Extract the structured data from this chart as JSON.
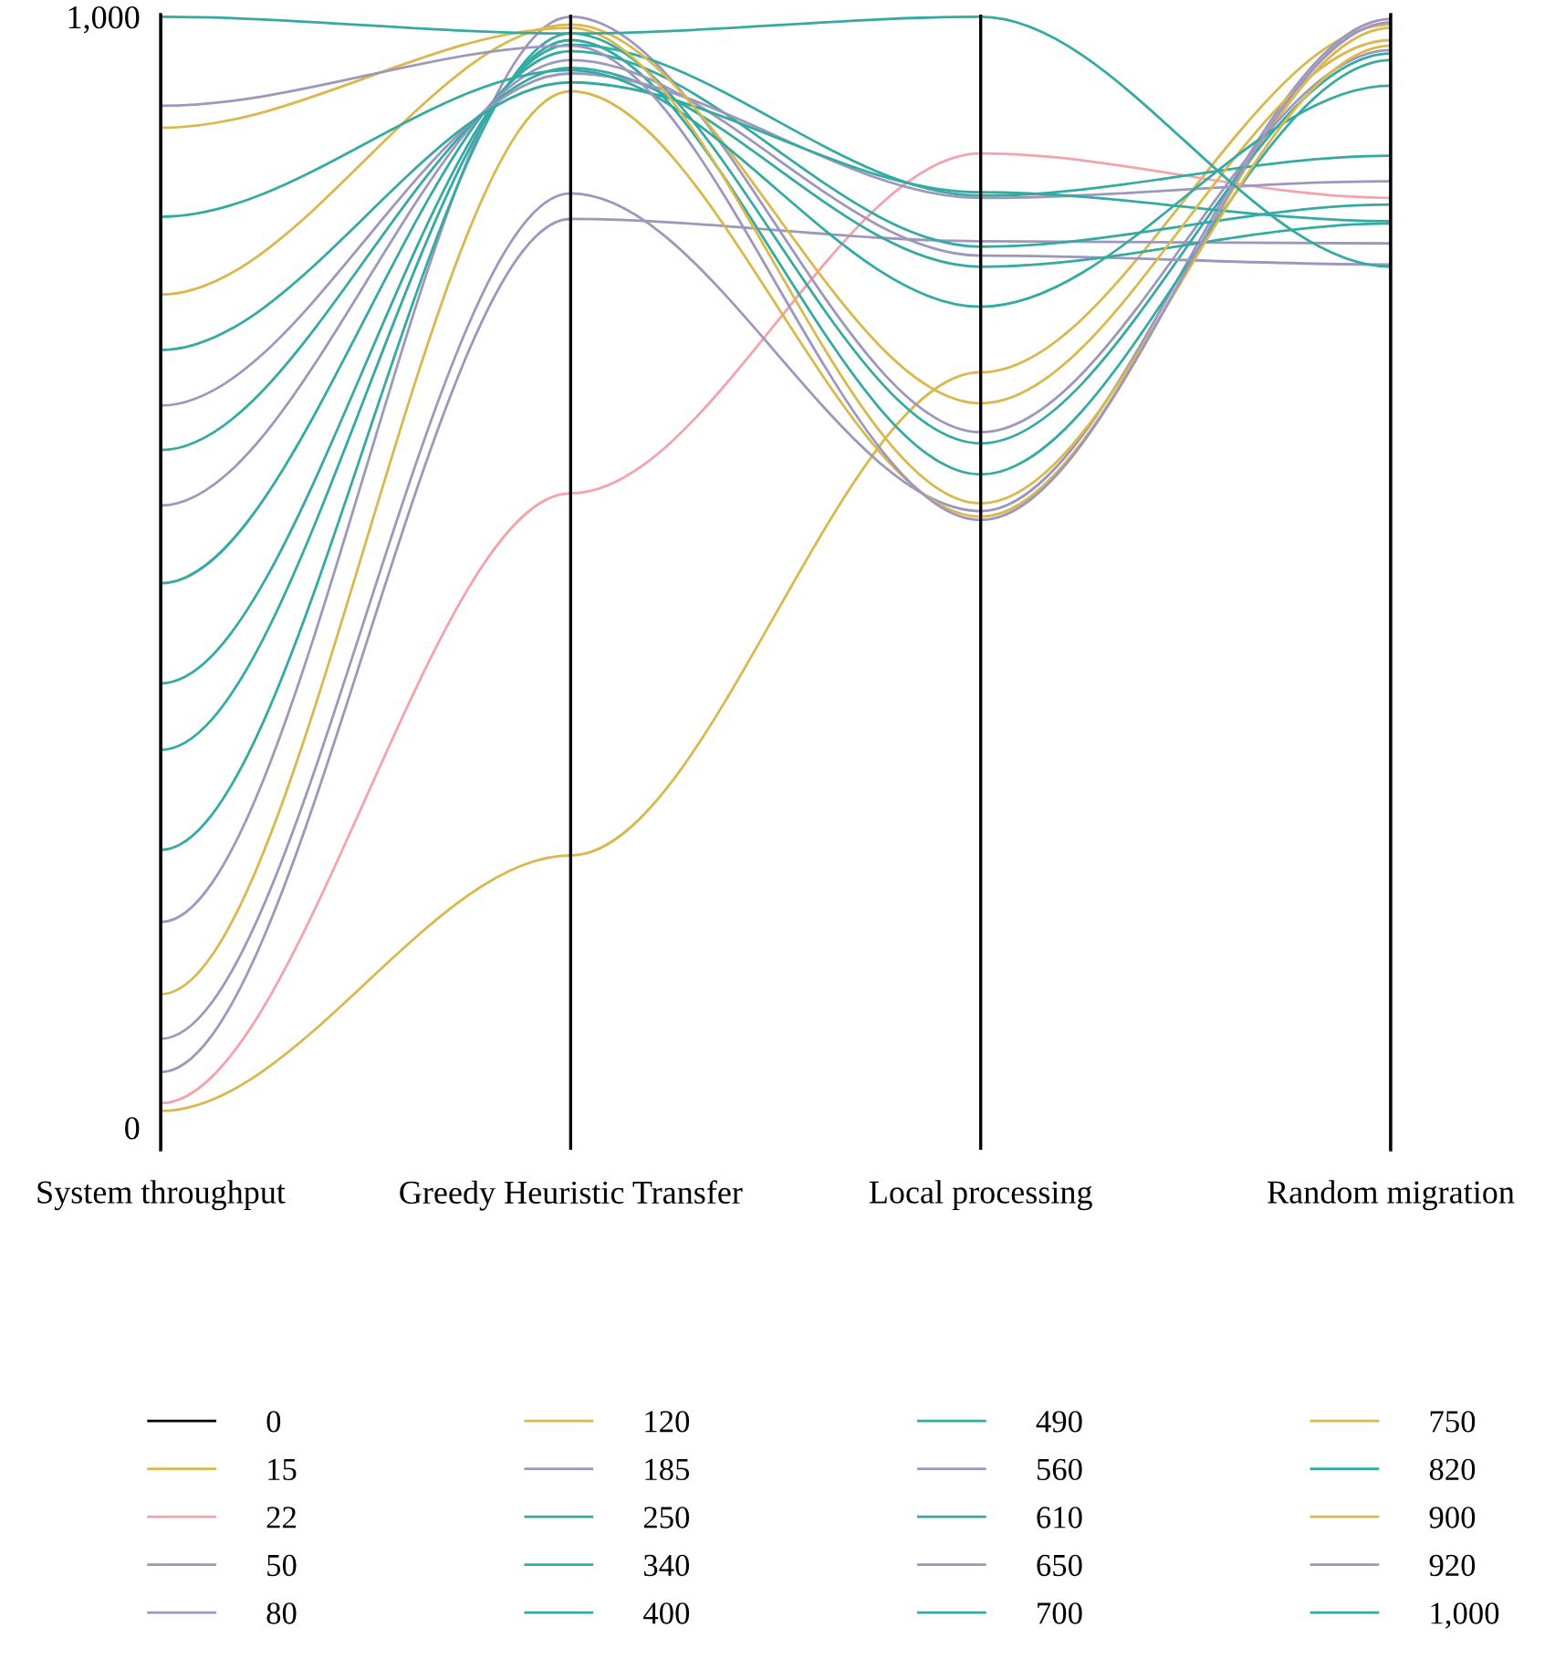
{
  "chart_data": {
    "type": "line",
    "categories": [
      "System throughput",
      "Greedy Heuristic Transfer",
      "Local processing",
      "Random migration"
    ],
    "ylim": [
      -20,
      1002
    ],
    "yticks": [
      0,
      {
        "value": 1000,
        "label": "1,000"
      }
    ],
    "grid": "x",
    "legend": "bottom",
    "series": [
      {
        "name": "0",
        "color": "#000000",
        "values": [
          null,
          null,
          null,
          null
        ]
      },
      {
        "name": "15",
        "color": "#d9b84e",
        "values": [
          15,
          245,
          680,
          993
        ]
      },
      {
        "name": "22",
        "color": "#f4a3ab",
        "values": [
          22,
          571,
          877,
          837
        ]
      },
      {
        "name": "50",
        "color": "#9e97bd",
        "values": [
          50,
          818,
          798,
          796
        ]
      },
      {
        "name": "80",
        "color": "#9e97bd",
        "values": [
          80,
          841,
          555,
          998
        ]
      },
      {
        "name": "120",
        "color": "#d9b84e",
        "values": [
          120,
          933,
          550,
          990
        ]
      },
      {
        "name": "185",
        "color": "#9e97bd",
        "values": [
          185,
          1000,
          626,
          970
        ]
      },
      {
        "name": "250",
        "color": "#35aaa3",
        "values": [
          250,
          985,
          616,
          967
        ]
      },
      {
        "name": "340",
        "color": "#35aaa3",
        "values": [
          340,
          979,
          588,
          961
        ]
      },
      {
        "name": "400",
        "color": "#35aaa3",
        "values": [
          400,
          975,
          839,
          875
        ]
      },
      {
        "name": "490",
        "color": "#35aaa3",
        "values": [
          490,
          969,
          793,
          831
        ]
      },
      {
        "name": "560",
        "color": "#9e97bd",
        "values": [
          560,
          961,
          785,
          777
        ]
      },
      {
        "name": "610",
        "color": "#35aaa3",
        "values": [
          610,
          954,
          775,
          814
        ]
      },
      {
        "name": "650",
        "color": "#9e97bd",
        "values": [
          650,
          949,
          837,
          852
        ]
      },
      {
        "name": "700",
        "color": "#35aaa3",
        "values": [
          700,
          941,
          842,
          816
        ]
      },
      {
        "name": "750",
        "color": "#d9b84e",
        "values": [
          750,
          993,
          652,
          979
        ]
      },
      {
        "name": "820",
        "color": "#35aaa3",
        "values": [
          820,
          952,
          739,
          938
        ]
      },
      {
        "name": "900",
        "color": "#d9b84e",
        "values": [
          900,
          990,
          562,
          974
        ]
      },
      {
        "name": "920",
        "color": "#9e97bd",
        "values": [
          920,
          974,
          547,
          995
        ]
      },
      {
        "name": "1,000",
        "color": "#35aaa3",
        "values": [
          1000,
          985,
          1000,
          775
        ]
      }
    ]
  }
}
